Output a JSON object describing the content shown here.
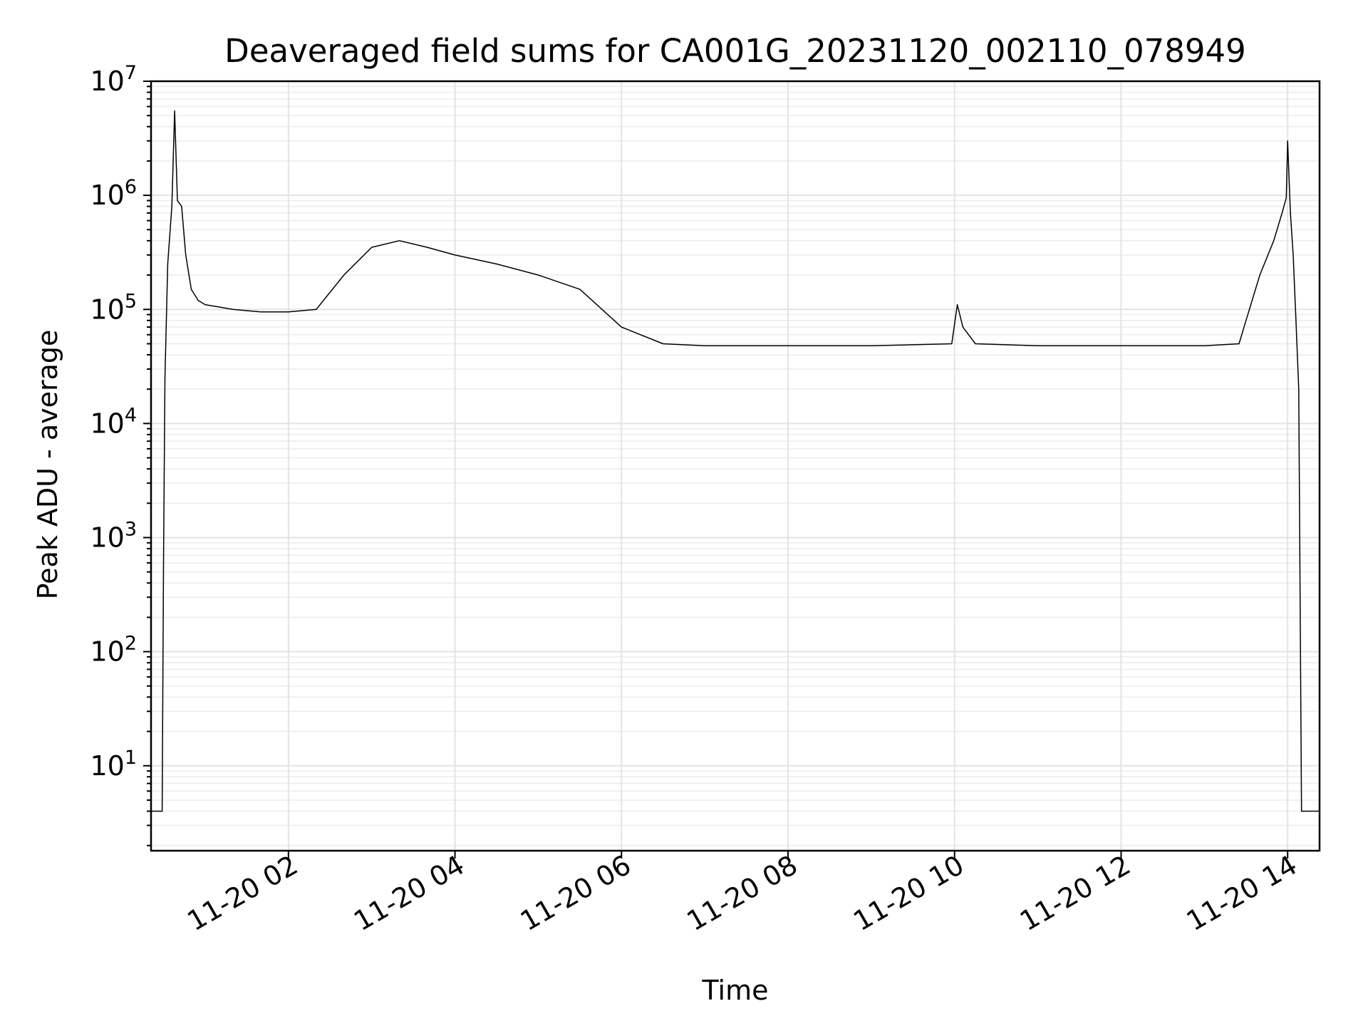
{
  "chart_data": {
    "type": "line",
    "title": "Deaveraged field sums for CA001G_20231120_002110_078949",
    "xlabel": "Time",
    "ylabel": "Peak ADU - average",
    "yscale": "log",
    "grid": true,
    "xlim": [
      "2023-11-20 00:21",
      "2023-11-20 14:23"
    ],
    "ylim": [
      1.8,
      10000000
    ],
    "xticks": [
      "11-20 02",
      "11-20 04",
      "11-20 06",
      "11-20 08",
      "11-20 10",
      "11-20 12",
      "11-20 14"
    ],
    "xtick_values": [
      "2023-11-20 02:00",
      "2023-11-20 04:00",
      "2023-11-20 06:00",
      "2023-11-20 08:00",
      "2023-11-20 10:00",
      "2023-11-20 12:00",
      "2023-11-20 14:00"
    ],
    "yticks": [
      {
        "base": "10",
        "exp": "1",
        "value": 10
      },
      {
        "base": "10",
        "exp": "2",
        "value": 100
      },
      {
        "base": "10",
        "exp": "3",
        "value": 1000
      },
      {
        "base": "10",
        "exp": "4",
        "value": 10000
      },
      {
        "base": "10",
        "exp": "5",
        "value": 100000
      },
      {
        "base": "10",
        "exp": "6",
        "value": 1000000
      },
      {
        "base": "10",
        "exp": "7",
        "value": 10000000
      }
    ],
    "series": [
      {
        "color": "#000000",
        "points": [
          [
            "2023-11-20 00:21",
            4
          ],
          [
            "2023-11-20 00:26",
            4
          ],
          [
            "2023-11-20 00:29",
            4
          ],
          [
            "2023-11-20 00:30",
            600
          ],
          [
            "2023-11-20 00:31",
            25000
          ],
          [
            "2023-11-20 00:33",
            250000
          ],
          [
            "2023-11-20 00:36",
            800000
          ],
          [
            "2023-11-20 00:38",
            5500000
          ],
          [
            "2023-11-20 00:40",
            900000
          ],
          [
            "2023-11-20 00:43",
            800000
          ],
          [
            "2023-11-20 00:46",
            300000
          ],
          [
            "2023-11-20 00:50",
            150000
          ],
          [
            "2023-11-20 00:55",
            120000
          ],
          [
            "2023-11-20 01:00",
            110000
          ],
          [
            "2023-11-20 01:10",
            105000
          ],
          [
            "2023-11-20 01:20",
            100000
          ],
          [
            "2023-11-20 01:40",
            95000
          ],
          [
            "2023-11-20 02:00",
            95000
          ],
          [
            "2023-11-20 02:20",
            100000
          ],
          [
            "2023-11-20 02:40",
            200000
          ],
          [
            "2023-11-20 03:00",
            350000
          ],
          [
            "2023-11-20 03:20",
            400000
          ],
          [
            "2023-11-20 03:40",
            350000
          ],
          [
            "2023-11-20 04:00",
            300000
          ],
          [
            "2023-11-20 04:30",
            250000
          ],
          [
            "2023-11-20 05:00",
            200000
          ],
          [
            "2023-11-20 05:30",
            150000
          ],
          [
            "2023-11-20 06:00",
            70000
          ],
          [
            "2023-11-20 06:30",
            50000
          ],
          [
            "2023-11-20 07:00",
            48000
          ],
          [
            "2023-11-20 08:00",
            48000
          ],
          [
            "2023-11-20 09:00",
            48000
          ],
          [
            "2023-11-20 09:58",
            50000
          ],
          [
            "2023-11-20 10:02",
            110000
          ],
          [
            "2023-11-20 10:06",
            70000
          ],
          [
            "2023-11-20 10:15",
            50000
          ],
          [
            "2023-11-20 11:00",
            48000
          ],
          [
            "2023-11-20 12:00",
            48000
          ],
          [
            "2023-11-20 13:00",
            48000
          ],
          [
            "2023-11-20 13:25",
            50000
          ],
          [
            "2023-11-20 13:30",
            80000
          ],
          [
            "2023-11-20 13:40",
            200000
          ],
          [
            "2023-11-20 13:50",
            400000
          ],
          [
            "2023-11-20 13:56",
            700000
          ],
          [
            "2023-11-20 13:59",
            950000
          ],
          [
            "2023-11-20 14:00",
            3000000
          ],
          [
            "2023-11-20 14:02",
            700000
          ],
          [
            "2023-11-20 14:04",
            300000
          ],
          [
            "2023-11-20 14:06",
            80000
          ],
          [
            "2023-11-20 14:08",
            20000
          ],
          [
            "2023-11-20 14:10",
            4
          ],
          [
            "2023-11-20 14:23",
            4
          ]
        ]
      }
    ]
  }
}
